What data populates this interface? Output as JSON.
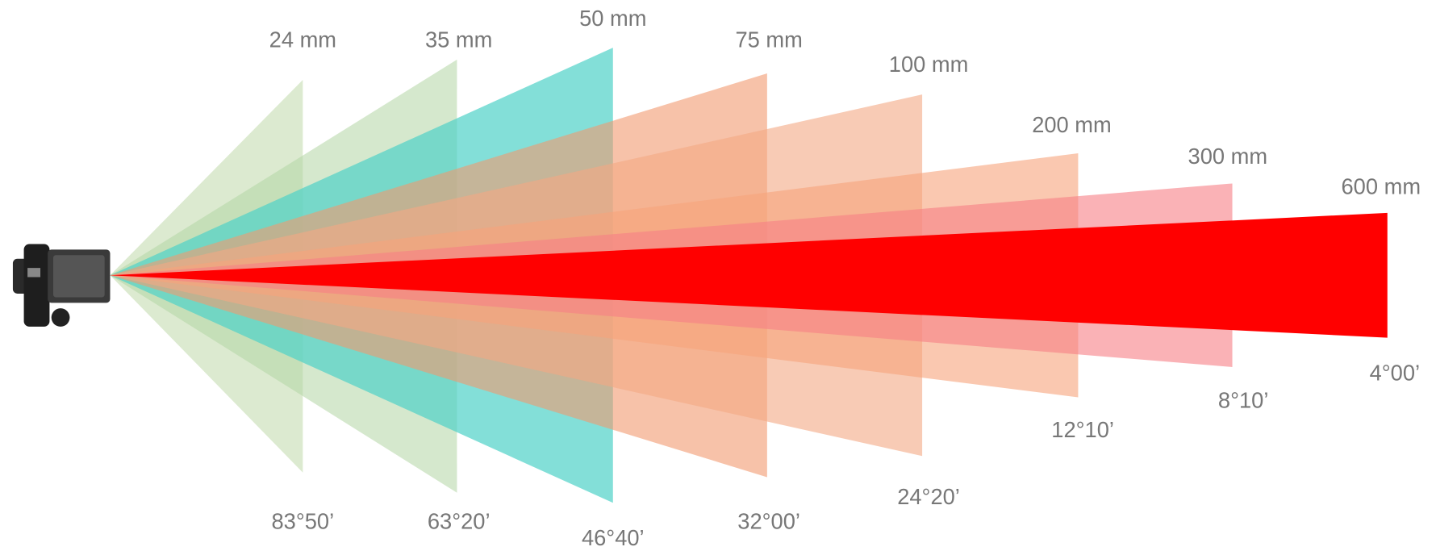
{
  "lenses": [
    {
      "focal": "24 mm",
      "angle": "83°50’"
    },
    {
      "focal": "35 mm",
      "angle": "63°20’"
    },
    {
      "focal": "50 mm",
      "angle": "46°40’"
    },
    {
      "focal": "75 mm",
      "angle": "32°00’"
    },
    {
      "focal": "100 mm",
      "angle": "24°20’"
    },
    {
      "focal": "200 mm",
      "angle": "12°10’"
    },
    {
      "focal": "300 mm",
      "angle": "8°10’"
    },
    {
      "focal": "600 mm",
      "angle": "4°00’"
    }
  ]
}
